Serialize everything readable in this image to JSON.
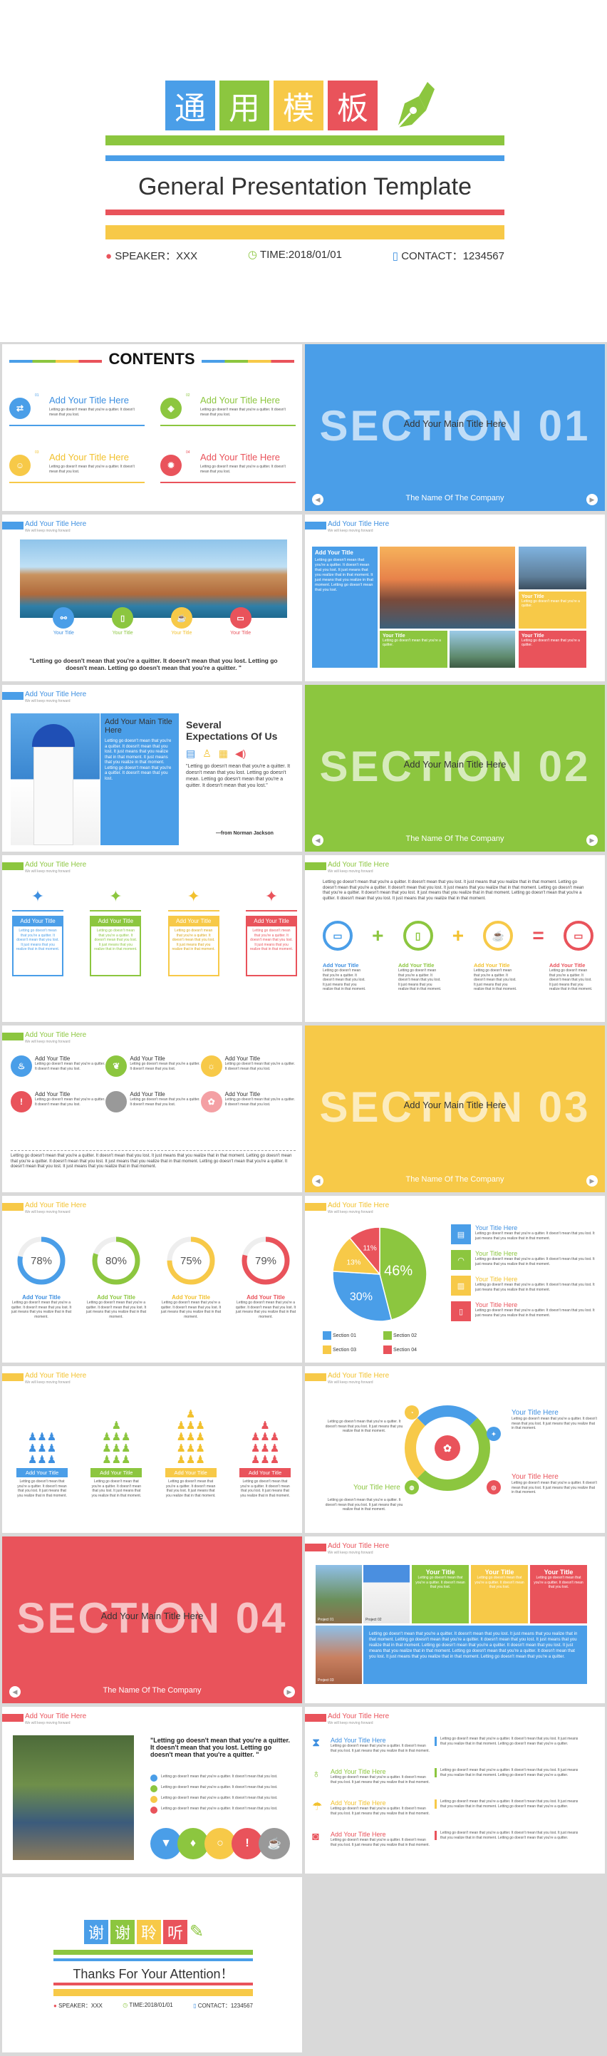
{
  "cover": {
    "chars": [
      "通",
      "用",
      "模",
      "板"
    ],
    "title": "General Presentation Template",
    "speaker": "SPEAKER：XXX",
    "time": "TIME:2018/01/01",
    "contact": "CONTACT：1234567"
  },
  "contents": {
    "heading": "CONTENTS",
    "items": [
      {
        "num": "01",
        "title": "Add Your Title Here",
        "text": "Letting go doesn't mean that you're a quitter. It doesn't mean that you lost."
      },
      {
        "num": "02",
        "title": "Add Your Title Here",
        "text": "Letting go doesn't mean that you're a quitter. It doesn't mean that you lost."
      },
      {
        "num": "03",
        "title": "Add Your Title Here",
        "text": "Letting go doesn't mean that you're a quitter. It doesn't mean that you lost."
      },
      {
        "num": "04",
        "title": "Add Your Title Here",
        "text": "Letting go doesn't mean that you're a quitter. It doesn't mean that you lost."
      }
    ]
  },
  "section1": {
    "big": "SECTION 01",
    "main": "Add Your Main Title Here",
    "company": "The Name Of The Company"
  },
  "section2": {
    "big": "SECTION 02",
    "main": "Add Your Main Title Here",
    "company": "The Name Of The Company"
  },
  "section3": {
    "big": "SECTION 03",
    "main": "Add Your Main Title Here",
    "company": "The Name Of The Company"
  },
  "section4": {
    "big": "SECTION 04",
    "main": "Add Your Main Title Here",
    "company": "The Name Of The Company"
  },
  "hdr": {
    "title": "Add Your Title Here",
    "sub": "We will keep moving forward"
  },
  "s4": {
    "labels": [
      "Your Title",
      "Your Title",
      "Your Title",
      "Your Title"
    ],
    "quote": "\"Letting go doesn't mean that you're a quitter. It doesn't mean that you lost. Letting go doesn't mean. Letting go doesn't mean that you're a quitter. \""
  },
  "s5": {
    "boxtitle": "Add Your Title",
    "boxtext": "Letting go doesn't mean that you're a quitter. It doesn't mean that you lost. It just means that you realize that in that moment. It just means that you realize in that moment. Letting go doesn't mean that you lost.",
    "ytitle": "Your Title",
    "ytext": "Letting go doesn't mean that you're a quitter.",
    "gtitle": "Your Title",
    "gtext": "Letting go doesn't mean that you're a quitter.",
    "rtitle": "Your Title",
    "rtext": "Letting go doesn't mean that you're a quitter."
  },
  "s6": {
    "title": "Add Your Main Title Here",
    "text": "Letting go doesn't mean that you're a quitter. It doesn't mean that you lost. It just means that you realize that in that moment. It just means that you realize in that moment. Letting go doesn't mean that you're a quitter. It doesn't mean that you lost.",
    "sev1": "Several",
    "sev2": "Expectations Of Us",
    "quote": "\"Letting go doesn't mean that you're a quitter. It doesn't mean that you lost. Letting go doesn't mean. Letting go doesn't mean that you're a quitter. It doesn't mean that you lost.\"",
    "author": "—from Norman Jackson"
  },
  "s8": {
    "title": "Add Your Title",
    "text": "Letting go doesn't mean that you're a quitter. It doesn't mean that you lost. It just means that you realize that in that moment."
  },
  "s9": {
    "intro": "Letting go doesn't mean that you're a quitter. It doesn't mean that you lost. It just means that you realize that in that moment. Letting go doesn't mean that you're a quitter. It doesn't mean that you lost. It just means that you realize that in that moment. Letting go doesn't mean that you're a quitter. It doesn't mean that you lost. It just means that you realize that in that moment. Letting go doesn't mean that you're a quitter. It doesn't mean that you lost. It just means that you realize that in that moment.",
    "title": "Add Your Title",
    "text": "Letting go doesn't mean that you're a quitter. It doesn't mean that you lost. It just means that you realize that in that moment."
  },
  "s10": {
    "title": "Add Your Title",
    "text": "Letting go doesn't mean that you're a quitter. It doesn't mean that you lost.",
    "bottom": "Letting go doesn't mean that you're a quitter. It doesn't mean that you lost. It just means that you realize that in that moment. Letting go doesn't mean that you're a quitter. It doesn't mean that you lost. It just means that you realize that in that moment. Letting go doesn't mean that you're a quitter. It doesn't mean that you lost. It just means that you realize that in that moment."
  },
  "s12": {
    "pcts": [
      "78%",
      "80%",
      "75%",
      "79%"
    ],
    "pvals": [
      78,
      80,
      75,
      79
    ],
    "title": "Add Your Title",
    "text": "Letting go doesn't mean that you're a quitter. It doesn't mean that you lost. It just means that you realize that in that moment."
  },
  "s13": {
    "chart_data": {
      "type": "pie",
      "values": [
        46,
        30,
        13,
        11
      ],
      "labels": [
        "46%",
        "30%",
        "13%",
        "11%"
      ],
      "legend": [
        "Section 01",
        "Section 02",
        "Section 03",
        "Section 04"
      ],
      "colors": [
        "#8cc63f",
        "#4a9ee8",
        "#f7c948",
        "#e9535b"
      ]
    },
    "title": "Your Title Here",
    "text": "Letting go doesn't mean that you're a quitter. It doesn't mean that you lost. It just means that you realize that in that moment."
  },
  "s14": {
    "title": "Add Your Title",
    "text": "Letting go doesn't mean that you're a quitter. It doesn't mean that you lost. It just means that you realize that in that moment."
  },
  "s15": {
    "text": "Letting go doesn't mean that you're a quitter. It doesn't mean that you lost. It just means that you realize that in that moment.",
    "title": "Your Title Here",
    "ptext": "Letting go doesn't mean that you're a quitter. It doesn't mean that you lost. It just means that you realize that in that moment."
  },
  "s17": {
    "proj": [
      "Project 01",
      "Project 02",
      "Project 03"
    ],
    "title": "Your Title",
    "text": "Letting go doesn't mean that you're a quitter. It doesn't mean that you lost.",
    "long": "Letting go doesn't mean that you're a quitter. It doesn't mean that you lost. It just means that you realize that in that moment. Letting go doesn't mean that you're a quitter. It doesn't mean that you lost. It just means that you realize that in that moment. Letting go doesn't mean that you're a quitter. It doesn't mean that you lost. It just means that you realize that in that moment. Letting go doesn't mean that you're a quitter. It doesn't mean that you lost. It just means that you realize that in that moment. Letting go doesn't mean that you're a quitter."
  },
  "s18": {
    "quote": "\"Letting go doesn't mean that you're a quitter. It doesn't mean that you lost. Letting go doesn't mean that you're a quitter. \"",
    "item": "Letting go doesn't mean that you're a quitter. It doesn't mean that you lost."
  },
  "s19": {
    "title": "Add Your Title Here",
    "text": "Letting go doesn't mean that you're a quitter. It doesn't mean that you lost. It just means that you realize that in that moment.",
    "right": "Letting go doesn't mean that you're a quitter. It doesn't mean that you lost. It just means that you realize that in that moment. Letting go doesn't mean that you're a quitter."
  },
  "thanks": {
    "chars": [
      "谢",
      "谢",
      "聆",
      "听"
    ],
    "title": "Thanks For Your Attention！",
    "speaker": "SPEAKER：XXX",
    "time": "TIME:2018/01/01",
    "contact": "CONTACT：1234567"
  }
}
